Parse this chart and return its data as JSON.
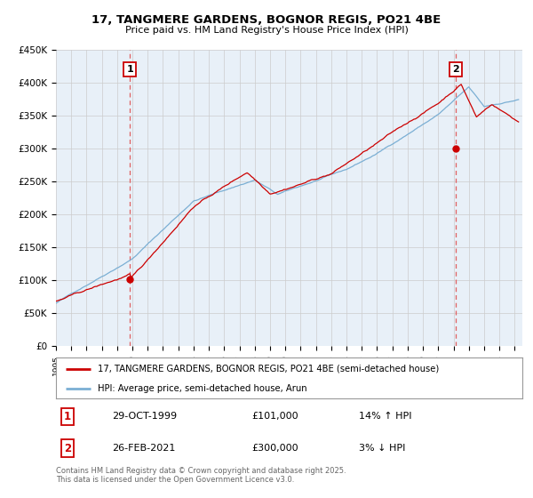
{
  "title_line1": "17, TANGMERE GARDENS, BOGNOR REGIS, PO21 4BE",
  "title_line2": "Price paid vs. HM Land Registry's House Price Index (HPI)",
  "ylabel_ticks": [
    "£0",
    "£50K",
    "£100K",
    "£150K",
    "£200K",
    "£250K",
    "£300K",
    "£350K",
    "£400K",
    "£450K"
  ],
  "ytick_values": [
    0,
    50000,
    100000,
    150000,
    200000,
    250000,
    300000,
    350000,
    400000,
    450000
  ],
  "xlim_left": 1995.0,
  "xlim_right": 2025.5,
  "ylim": [
    0,
    450000
  ],
  "sale1_x": 1999.83,
  "sale1_y": 101000,
  "sale1_label": "1",
  "sale2_x": 2021.15,
  "sale2_y": 300000,
  "sale2_label": "2",
  "red_color": "#cc0000",
  "blue_color": "#7bafd4",
  "vline_color": "#e06060",
  "grid_color": "#cccccc",
  "chart_bg_color": "#e8f0f8",
  "legend_line1": "17, TANGMERE GARDENS, BOGNOR REGIS, PO21 4BE (semi-detached house)",
  "legend_line2": "HPI: Average price, semi-detached house, Arun",
  "table_row1_num": "1",
  "table_row1_date": "29-OCT-1999",
  "table_row1_price": "£101,000",
  "table_row1_hpi": "14% ↑ HPI",
  "table_row2_num": "2",
  "table_row2_date": "26-FEB-2021",
  "table_row2_price": "£300,000",
  "table_row2_hpi": "3% ↓ HPI",
  "footnote": "Contains HM Land Registry data © Crown copyright and database right 2025.\nThis data is licensed under the Open Government Licence v3.0.",
  "background_color": "#ffffff"
}
